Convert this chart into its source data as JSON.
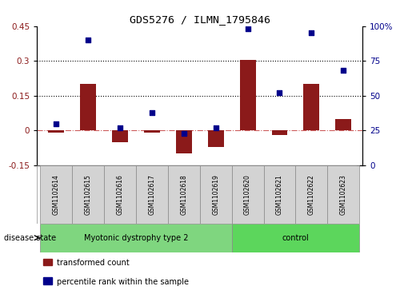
{
  "title": "GDS5276 / ILMN_1795846",
  "samples": [
    "GSM1102614",
    "GSM1102615",
    "GSM1102616",
    "GSM1102617",
    "GSM1102618",
    "GSM1102619",
    "GSM1102620",
    "GSM1102621",
    "GSM1102622",
    "GSM1102623"
  ],
  "transformed_count": [
    -0.01,
    0.2,
    -0.05,
    -0.01,
    -0.1,
    -0.07,
    0.305,
    -0.02,
    0.2,
    0.05
  ],
  "percentile_rank": [
    30,
    90,
    27,
    38,
    23,
    27,
    98,
    52,
    95,
    68
  ],
  "disease_groups": [
    {
      "label": "Myotonic dystrophy type 2",
      "start": 0,
      "end": 5,
      "color": "#7FD67F"
    },
    {
      "label": "control",
      "start": 6,
      "end": 9,
      "color": "#5CD65C"
    }
  ],
  "left_ylim": [
    -0.15,
    0.45
  ],
  "right_ylim": [
    0,
    100
  ],
  "left_yticks": [
    -0.15,
    0.0,
    0.15,
    0.3,
    0.45
  ],
  "right_yticks": [
    0,
    25,
    50,
    75,
    100
  ],
  "bar_color": "#8B1A1A",
  "scatter_color": "#00008B",
  "dotted_line_y": [
    0.15,
    0.3
  ],
  "zero_line_color": "#CD5C5C",
  "legend_items": [
    "transformed count",
    "percentile rank within the sample"
  ],
  "disease_label": "disease state",
  "sample_box_color": "#D3D3D3",
  "bar_width": 0.5
}
